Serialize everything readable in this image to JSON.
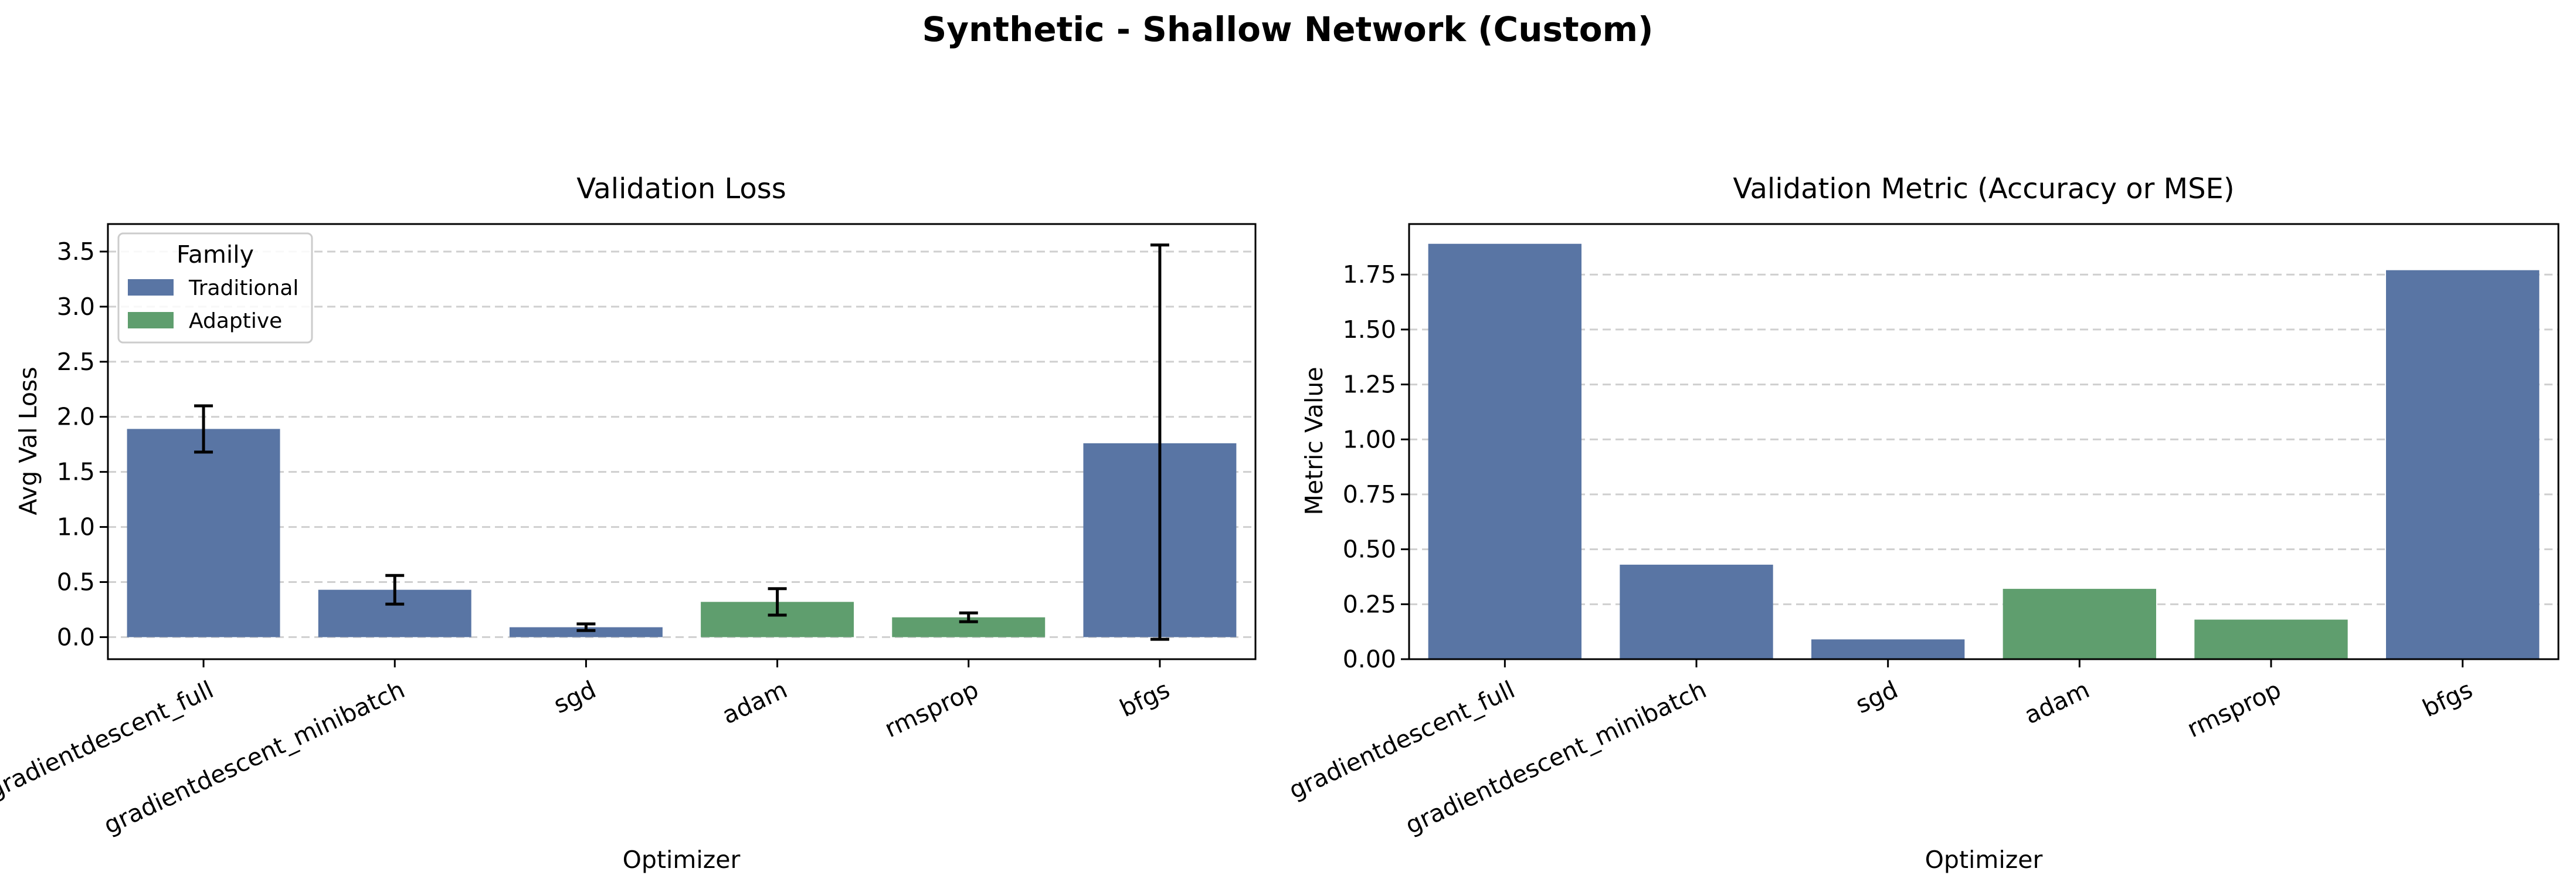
{
  "suptitle": "Synthetic - Shallow Network (Custom)",
  "colors": {
    "Traditional": "#5975a4",
    "Adaptive": "#5f9e6e"
  },
  "chart_data": [
    {
      "type": "bar",
      "title": "Validation Loss",
      "xlabel": "Optimizer",
      "ylabel": "Avg Val Loss",
      "categories": [
        "gradientdescent_full",
        "gradientdescent_minibatch",
        "sgd",
        "adam",
        "rmsprop",
        "bfgs"
      ],
      "families": [
        "Traditional",
        "Traditional",
        "Traditional",
        "Adaptive",
        "Adaptive",
        "Traditional"
      ],
      "values": [
        1.89,
        0.43,
        0.09,
        0.32,
        0.18,
        1.76
      ],
      "error_low": [
        1.68,
        0.3,
        0.06,
        0.2,
        0.14,
        -0.02
      ],
      "error_high": [
        2.1,
        0.56,
        0.12,
        0.44,
        0.22,
        3.56
      ],
      "ylim": [
        -0.2,
        3.75
      ],
      "yticks": [
        0.0,
        0.5,
        1.0,
        1.5,
        2.0,
        2.5,
        3.0,
        3.5
      ],
      "ytick_labels": [
        "0.0",
        "0.5",
        "1.0",
        "1.5",
        "2.0",
        "2.5",
        "3.0",
        "3.5"
      ],
      "grid": "y",
      "legend": {
        "title": "Family",
        "placement": "upper-left",
        "entries": [
          {
            "label": "Traditional",
            "color": "#5975a4"
          },
          {
            "label": "Adaptive",
            "color": "#5f9e6e"
          }
        ]
      }
    },
    {
      "type": "bar",
      "title": "Validation Metric (Accuracy or MSE)",
      "xlabel": "Optimizer",
      "ylabel": "Metric Value",
      "categories": [
        "gradientdescent_full",
        "gradientdescent_minibatch",
        "sgd",
        "adam",
        "rmsprop",
        "bfgs"
      ],
      "families": [
        "Traditional",
        "Traditional",
        "Traditional",
        "Adaptive",
        "Adaptive",
        "Traditional"
      ],
      "values": [
        1.89,
        0.43,
        0.09,
        0.32,
        0.18,
        1.77
      ],
      "ylim": [
        0,
        1.98
      ],
      "yticks": [
        0.0,
        0.25,
        0.5,
        0.75,
        1.0,
        1.25,
        1.5,
        1.75
      ],
      "ytick_labels": [
        "0.00",
        "0.25",
        "0.50",
        "0.75",
        "1.00",
        "1.25",
        "1.50",
        "1.75"
      ],
      "grid": "y"
    }
  ]
}
